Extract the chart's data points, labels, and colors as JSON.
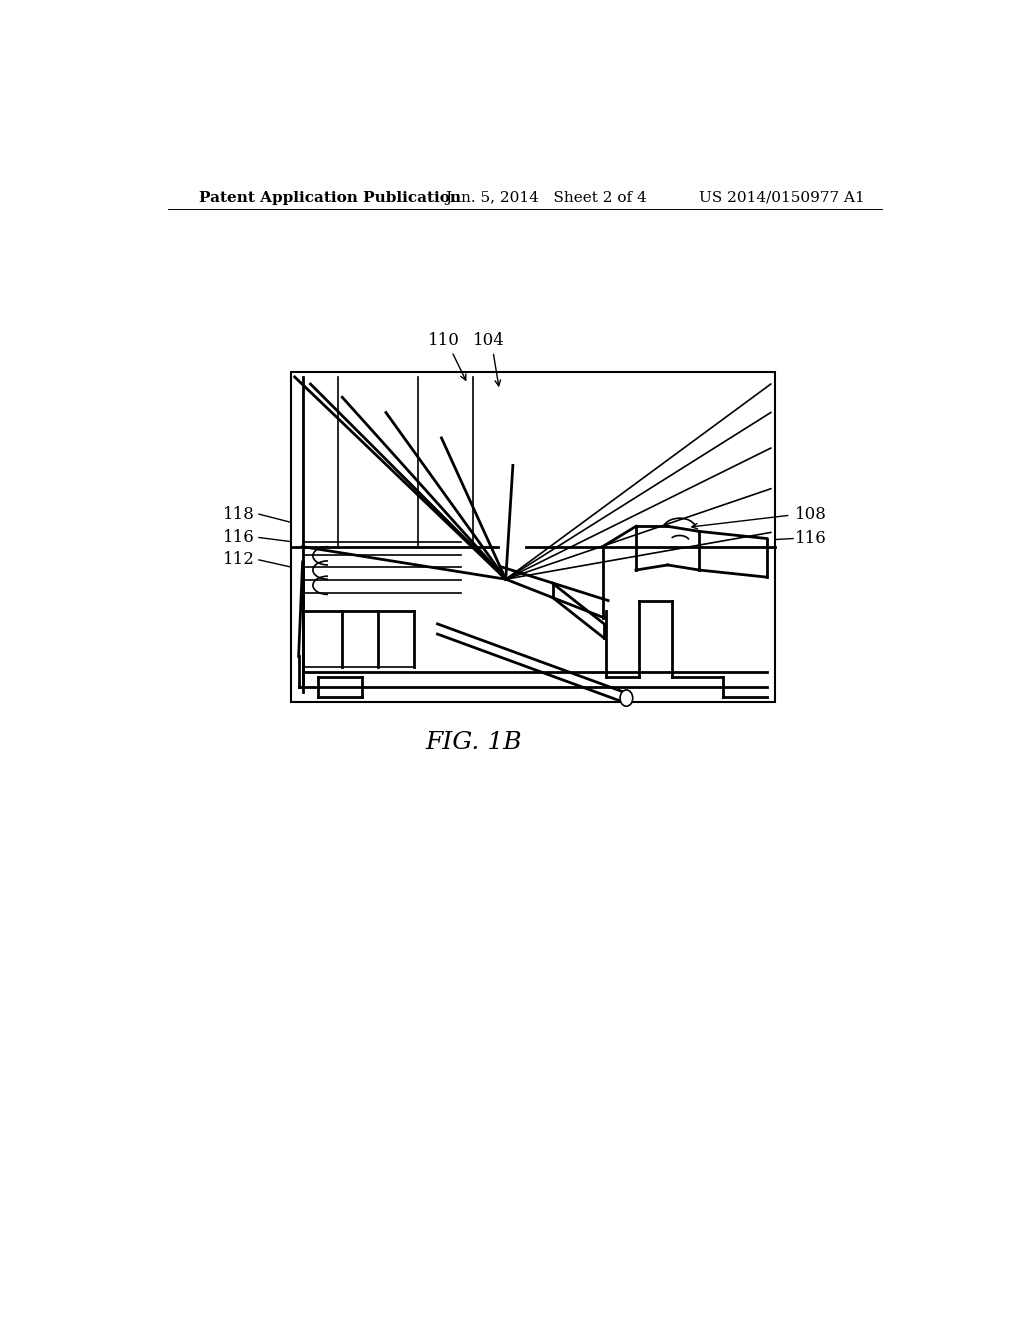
{
  "bg_color": "#ffffff",
  "header_left": "Patent Application Publication",
  "header_center": "Jun. 5, 2014   Sheet 2 of 4",
  "header_right": "US 2014/0150977 A1",
  "header_fontsize": 11,
  "fig_label": "FIG. 1B",
  "fig_label_fontsize": 18,
  "line_color": "#000000",
  "label_fontsize": 12,
  "dleft": 0.205,
  "dtop": 0.79,
  "dwidth": 0.61,
  "dheight": 0.325
}
